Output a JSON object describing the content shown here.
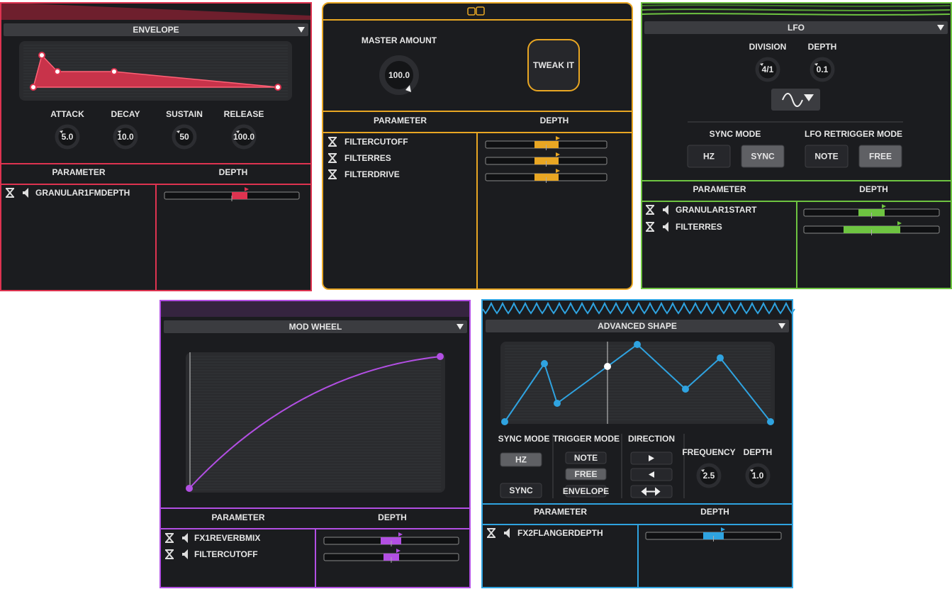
{
  "panels": [
    {
      "title": "ENVELOPE",
      "knobs": [
        {
          "label": "ATTACK",
          "value": "5.0"
        },
        {
          "label": "DECAY",
          "value": "10.0"
        },
        {
          "label": "SUSTAIN",
          "value": "50"
        },
        {
          "label": "RELEASE",
          "value": "100.0"
        }
      ],
      "table": {
        "headers": [
          "PARAMETER",
          "DEPTH"
        ],
        "rows": [
          "GRANULAR1FMDEPTH"
        ]
      }
    },
    {
      "master_label": "MASTER AMOUNT",
      "master_value": "100.0",
      "button": "TWEAK IT",
      "table": {
        "headers": [
          "PARAMETER",
          "DEPTH"
        ],
        "rows": [
          "FILTERCUTOFF",
          "FILTERRES",
          "FILTERDRIVE"
        ]
      }
    },
    {
      "title": "LFO",
      "knobs": [
        {
          "label": "DIVISION",
          "value": "4/1"
        },
        {
          "label": "DEPTH",
          "value": "0.1"
        }
      ],
      "sync_mode": {
        "label": "SYNC MODE",
        "options": [
          "HZ",
          "SYNC"
        ]
      },
      "retrigger_mode": {
        "label": "LFO RETRIGGER MODE",
        "options": [
          "NOTE",
          "FREE"
        ]
      },
      "table": {
        "headers": [
          "PARAMETER",
          "DEPTH"
        ],
        "rows": [
          "GRANULAR1START",
          "FILTERRES"
        ]
      }
    },
    {
      "title": "MOD WHEEL",
      "table": {
        "headers": [
          "PARAMETER",
          "DEPTH"
        ],
        "rows": [
          "FX1REVERBMIX",
          "FILTERCUTOFF"
        ]
      }
    },
    {
      "title": "ADVANCED SHAPE",
      "sync_mode": {
        "label": "SYNC MODE",
        "options": [
          "HZ",
          "SYNC"
        ]
      },
      "trigger_mode": {
        "label": "TRIGGER MODE",
        "options": [
          "NOTE",
          "FREE",
          "ENVELOPE"
        ]
      },
      "direction_label": "DIRECTION",
      "knobs": [
        {
          "label": "FREQUENCY",
          "value": "2.5"
        },
        {
          "label": "DEPTH",
          "value": "1.0"
        }
      ],
      "table": {
        "headers": [
          "PARAMETER",
          "DEPTH"
        ],
        "rows": [
          "FX2FLANGERDEPTH"
        ]
      }
    }
  ]
}
